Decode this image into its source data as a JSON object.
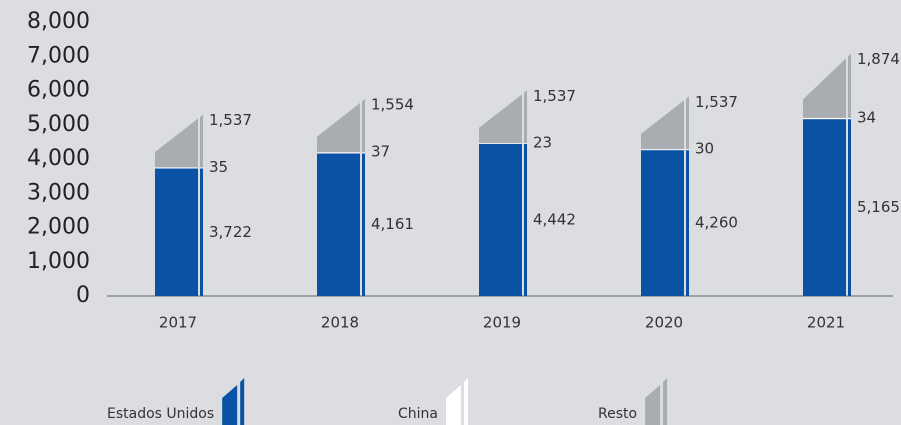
{
  "chart_data": {
    "type": "stacked_bar",
    "categories": [
      "2017",
      "2018",
      "2019",
      "2020",
      "2021"
    ],
    "series": [
      {
        "name": "Estados Unidos",
        "color": "#0a52a5",
        "values": [
          3722,
          4161,
          4442,
          4260,
          5165
        ],
        "value_labels": [
          "3,722",
          "4,161",
          "4,442",
          "4,260",
          "5,165"
        ]
      },
      {
        "name": "China",
        "color": "#ffffff",
        "values": [
          35,
          37,
          23,
          30,
          34
        ],
        "value_labels": [
          "35",
          "37",
          "23",
          "30",
          "34"
        ]
      },
      {
        "name": "Resto",
        "color": "#a9adb2",
        "values": [
          1537,
          1554,
          1537,
          1537,
          1874
        ],
        "value_labels": [
          "1,537",
          "1,554",
          "1,537",
          "1,537",
          "1,874"
        ]
      }
    ],
    "ylim": [
      0,
      8000
    ],
    "yticks": [
      0,
      {
        "value": 1000,
        "label": "1,000"
      },
      {
        "value": 2000,
        "label": "2,000"
      },
      {
        "value": 3000,
        "label": "3,000"
      },
      {
        "value": 4000,
        "label": "4,000"
      },
      {
        "value": 5000,
        "label": "5,000"
      },
      {
        "value": 6000,
        "label": "6,000"
      },
      {
        "value": 7000,
        "label": "7,000"
      },
      {
        "value": 8000,
        "label": "8,000"
      }
    ],
    "legend": "bottom"
  }
}
